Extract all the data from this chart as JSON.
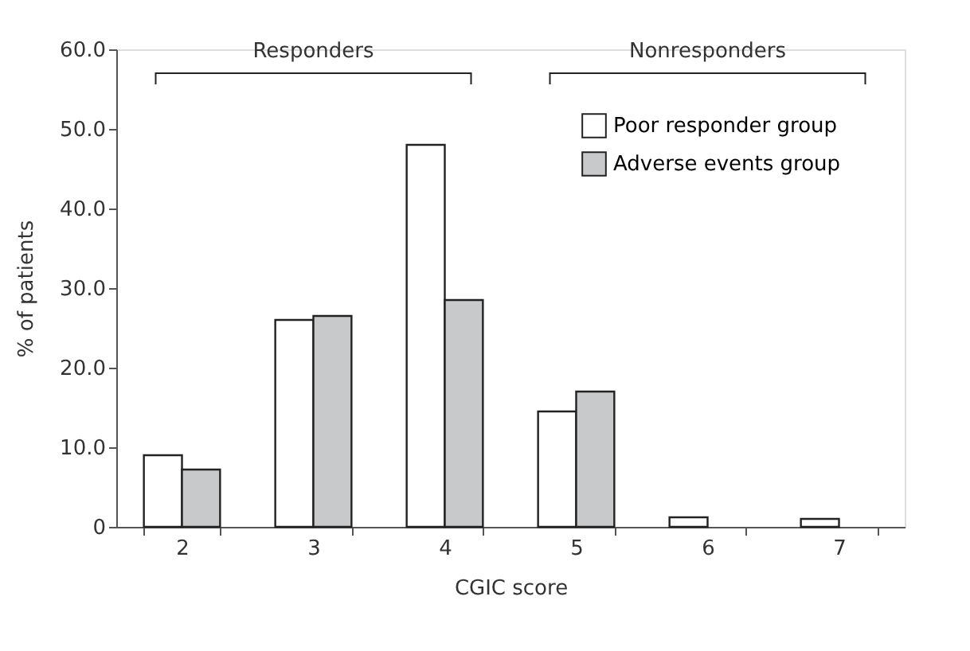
{
  "chart_data": {
    "type": "bar",
    "xlabel": "CGIC score",
    "ylabel": "% of patients",
    "categories": [
      "2",
      "3",
      "4",
      "5",
      "6",
      "7"
    ],
    "series": [
      {
        "name": "Poor responder group",
        "color": "#ffffff",
        "values": [
          9.0,
          26.0,
          48.0,
          14.5,
          1.2,
          1.0
        ]
      },
      {
        "name": "Adverse events group",
        "color": "#c8c9cb",
        "values": [
          7.2,
          26.5,
          28.5,
          17.0,
          null,
          null
        ]
      }
    ],
    "ylim": [
      0,
      60
    ],
    "yticks": [
      0,
      {
        "value": 10,
        "label": "10.0"
      },
      {
        "value": 20,
        "label": "20.0"
      },
      {
        "value": 30,
        "label": "30.0"
      },
      {
        "value": 40,
        "label": "40.0"
      },
      {
        "value": 50,
        "label": "50.0"
      },
      {
        "value": 60,
        "label": "60.0"
      }
    ],
    "annotations": [
      "Responders",
      "Nonresponders"
    ],
    "grid": false,
    "legend": "top right"
  }
}
